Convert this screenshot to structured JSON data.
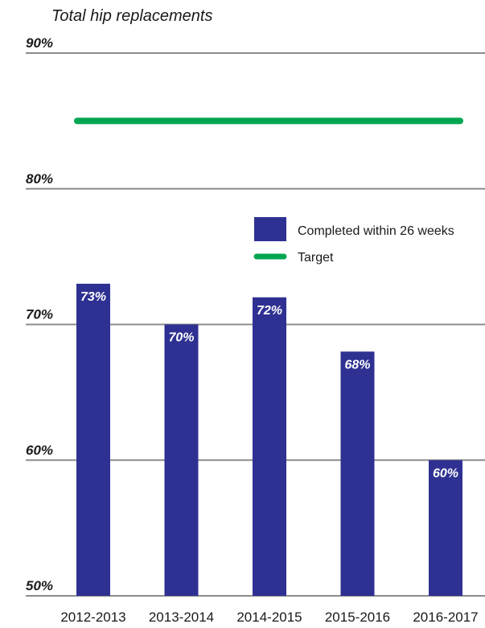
{
  "chart_data": {
    "type": "bar",
    "title": "Total hip replacements",
    "categories": [
      "2012-2013",
      "2013-2014",
      "2014-2015",
      "2015-2016",
      "2016-2017"
    ],
    "series": [
      {
        "name": "Completed within 26 weeks",
        "values": [
          73,
          70,
          72,
          68,
          60
        ],
        "value_labels": [
          "73%",
          "70%",
          "72%",
          "68%",
          "60%"
        ],
        "color": "#2e3192"
      }
    ],
    "target": {
      "name": "Target",
      "value": 85,
      "color": "#00a651"
    },
    "ylim": [
      50,
      90
    ],
    "yticks": [
      50,
      60,
      70,
      80,
      90
    ],
    "ytick_labels": [
      "50%",
      "60%",
      "70%",
      "80%",
      "90%"
    ],
    "grid": true,
    "legend_position": "right"
  }
}
